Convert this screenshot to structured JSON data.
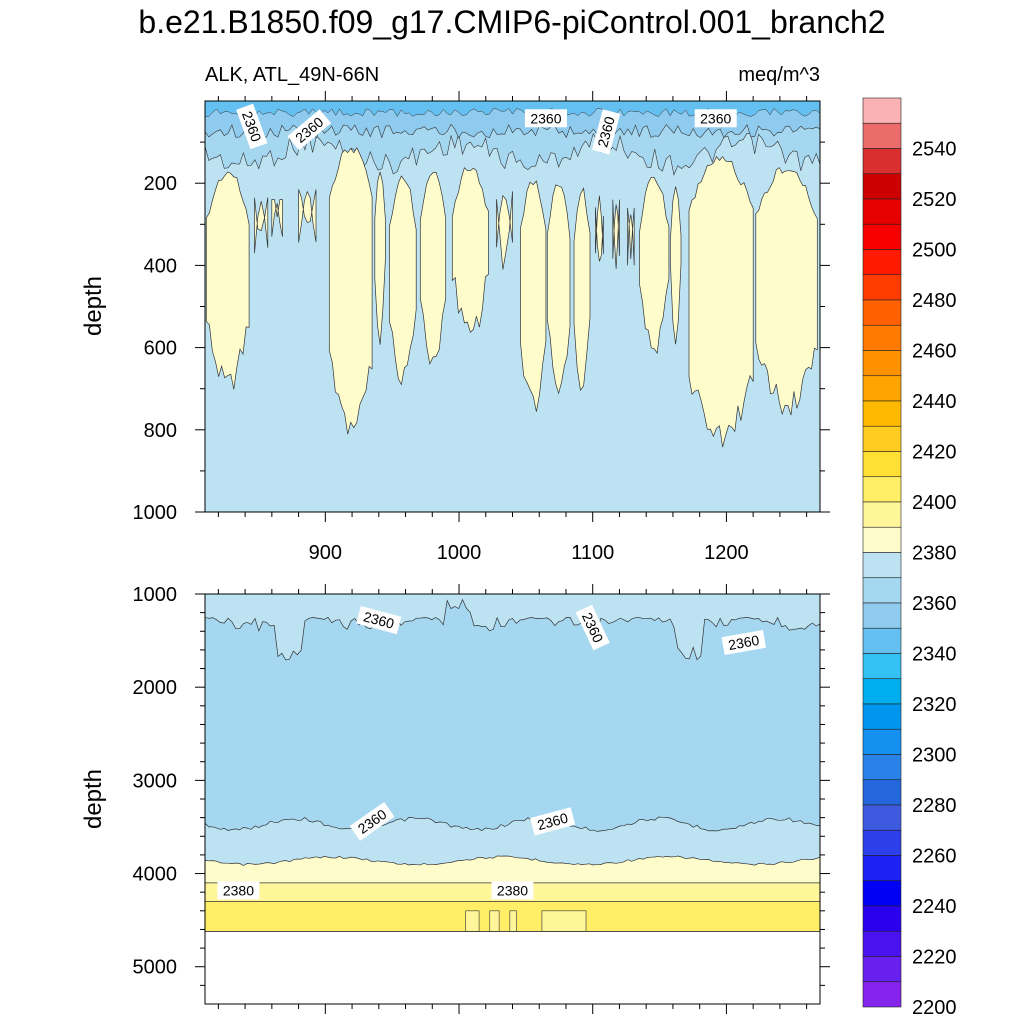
{
  "title": "b.e21.B1850.f09_g17.CMIP6-piControl.001_branch2",
  "subtitle_left": "ALK, ATL_49N-66N",
  "subtitle_right": "meq/m^3",
  "chart_data": [
    {
      "type": "heatmap",
      "panel": "upper",
      "ylabel": "depth",
      "xlabel": "",
      "xlim": [
        810,
        1270
      ],
      "ylim": [
        1000,
        0
      ],
      "x_ticks": [
        900,
        1000,
        1100,
        1200
      ],
      "y_ticks": [
        200,
        400,
        600,
        800,
        1000
      ],
      "contour_interval": 10,
      "fill_background": 2365,
      "fill_high": 2375,
      "contour_labels": [
        "2360",
        "2360",
        "2360",
        "2360",
        "2360"
      ],
      "high_regions": [
        {
          "x_start": 811,
          "x_end": 843,
          "top": 160,
          "bottom": 720
        },
        {
          "x_start": 847,
          "x_end": 857,
          "top": 235,
          "bottom": 370
        },
        {
          "x_start": 860,
          "x_end": 868,
          "top": 240,
          "bottom": 330
        },
        {
          "x_start": 880,
          "x_end": 893,
          "top": 215,
          "bottom": 350
        },
        {
          "x_start": 903,
          "x_end": 935,
          "top": 100,
          "bottom": 820
        },
        {
          "x_start": 937,
          "x_end": 945,
          "top": 160,
          "bottom": 600
        },
        {
          "x_start": 948,
          "x_end": 968,
          "top": 170,
          "bottom": 710
        },
        {
          "x_start": 971,
          "x_end": 990,
          "top": 155,
          "bottom": 670
        },
        {
          "x_start": 995,
          "x_end": 1022,
          "top": 145,
          "bottom": 600
        },
        {
          "x_start": 1028,
          "x_end": 1040,
          "top": 220,
          "bottom": 430
        },
        {
          "x_start": 1046,
          "x_end": 1065,
          "top": 180,
          "bottom": 770
        },
        {
          "x_start": 1066,
          "x_end": 1083,
          "top": 190,
          "bottom": 720
        },
        {
          "x_start": 1086,
          "x_end": 1098,
          "top": 200,
          "bottom": 730
        },
        {
          "x_start": 1102,
          "x_end": 1108,
          "top": 230,
          "bottom": 450
        },
        {
          "x_start": 1115,
          "x_end": 1120,
          "top": 240,
          "bottom": 420
        },
        {
          "x_start": 1126,
          "x_end": 1131,
          "top": 260,
          "bottom": 400
        },
        {
          "x_start": 1135,
          "x_end": 1157,
          "top": 175,
          "bottom": 640
        },
        {
          "x_start": 1158,
          "x_end": 1166,
          "top": 200,
          "bottom": 600
        },
        {
          "x_start": 1172,
          "x_end": 1220,
          "top": 130,
          "bottom": 850
        },
        {
          "x_start": 1222,
          "x_end": 1268,
          "top": 150,
          "bottom": 770
        }
      ]
    },
    {
      "type": "heatmap",
      "panel": "lower",
      "ylabel": "depth",
      "xlabel": "",
      "xlim": [
        810,
        1270
      ],
      "ylim": [
        5400,
        1000
      ],
      "y_ticks": [
        1000,
        2000,
        3000,
        4000,
        5000
      ],
      "contour_interval": 10,
      "bottom_depth": 4620,
      "layers": [
        {
          "value": 2365,
          "from_depth": 1000,
          "to_depth": 1250
        },
        {
          "value": 2355,
          "from_depth": 1250,
          "to_depth": 3450
        },
        {
          "value": 2365,
          "from_depth": 3450,
          "to_depth": 3850
        },
        {
          "value": 2375,
          "from_depth": 3850,
          "to_depth": 4100
        },
        {
          "value": 2385,
          "from_depth": 4100,
          "to_depth": 4300
        },
        {
          "value": 2395,
          "from_depth": 4300,
          "to_depth": 4620
        }
      ],
      "contour_labels": [
        "2360",
        "2360",
        "2360",
        "2360",
        "2360",
        "2380",
        "2380"
      ]
    }
  ],
  "colorbar": {
    "labels": [
      "2540",
      "2520",
      "2500",
      "2480",
      "2460",
      "2440",
      "2420",
      "2400",
      "2380",
      "2360",
      "2340",
      "2320",
      "2300",
      "2280",
      "2260",
      "2240",
      "2220",
      "2200"
    ],
    "colors_top_to_bottom": [
      "#fbb2b2",
      "#ec6c6c",
      "#da2f2f",
      "#cc0000",
      "#e60000",
      "#f70000",
      "#ff1a00",
      "#ff3c00",
      "#ff6000",
      "#ff7a00",
      "#ff9100",
      "#ffa500",
      "#ffb900",
      "#ffcc22",
      "#ffdf33",
      "#ffee66",
      "#fff599",
      "#fffccc",
      "#bde3f3",
      "#a5d7f0",
      "#8ecbee",
      "#63c0f0",
      "#34c1f3",
      "#00aef0",
      "#0096f0",
      "#1490f0",
      "#2a82e8",
      "#2467dd",
      "#3e5be0",
      "#2c3fe8",
      "#1c22f2",
      "#0000f5",
      "#2b00ef",
      "#4a12ee",
      "#6720ee",
      "#8424ec"
    ]
  }
}
